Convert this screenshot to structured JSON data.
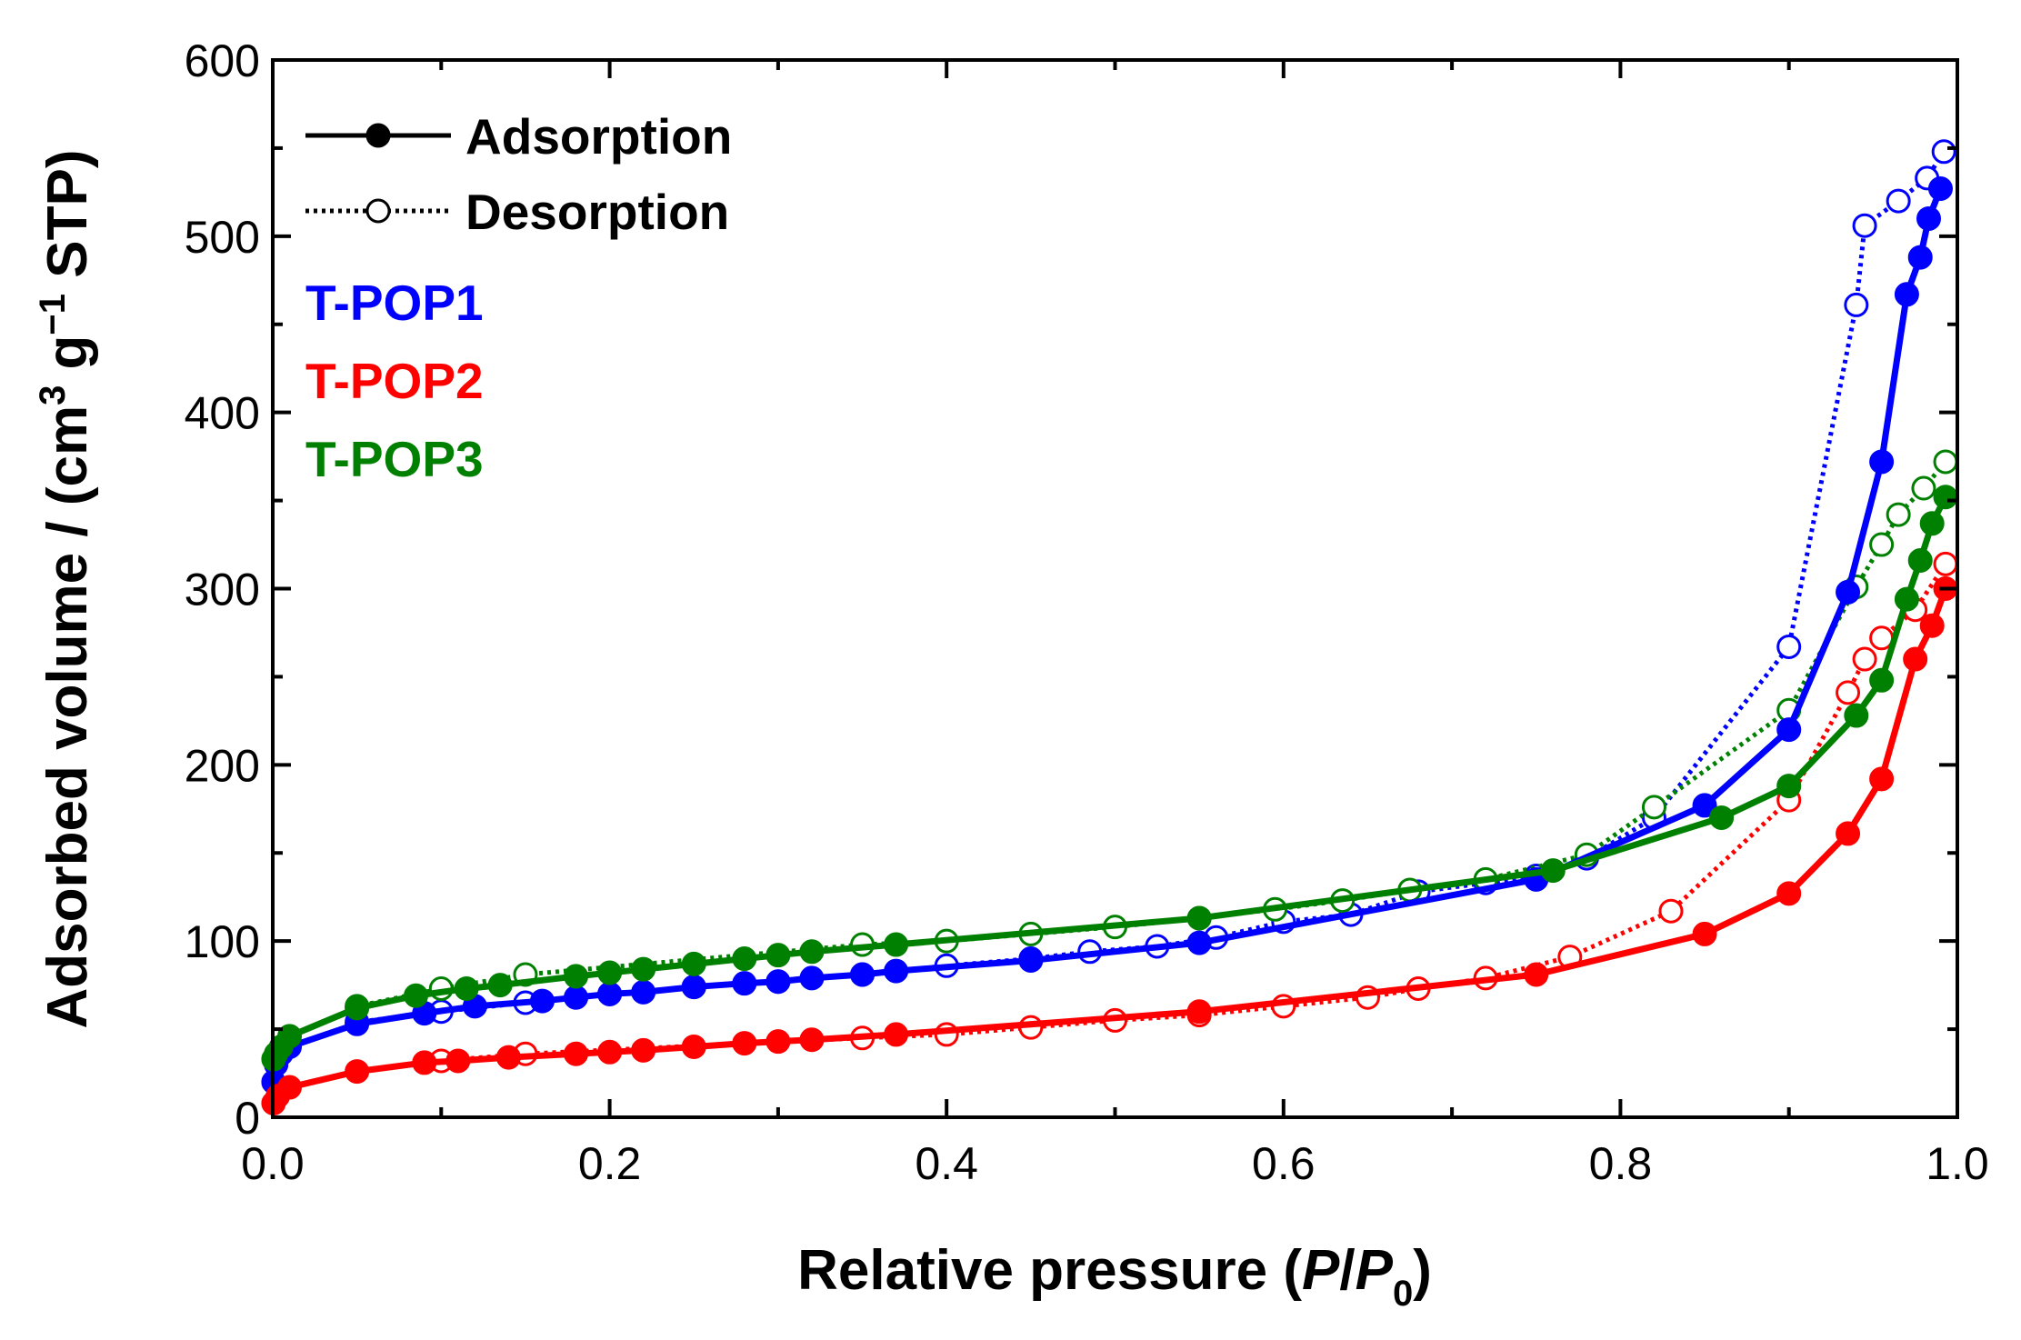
{
  "chart_data": {
    "type": "line",
    "xlim": [
      0.0,
      1.0
    ],
    "ylim": [
      0,
      600
    ],
    "x_ticks": [
      0.0,
      0.2,
      0.4,
      0.6,
      0.8,
      1.0
    ],
    "x_tick_labels": [
      "0.0",
      "0.2",
      "0.4",
      "0.6",
      "0.8",
      "1.0"
    ],
    "y_ticks": [
      0,
      100,
      200,
      300,
      400,
      500,
      600
    ],
    "y_tick_labels": [
      "0",
      "100",
      "200",
      "300",
      "400",
      "500",
      "600"
    ],
    "xlabel": {
      "main": "Relative pressure (",
      "italic_p": "P",
      "slash": "/",
      "italic_p0": "P",
      "sub_zero": "0",
      "close": ")"
    },
    "ylabel": {
      "main": "Adsorbed volume / (cm",
      "sup3": "3",
      "g": " g",
      "supm1": "−1",
      "tail": " STP)"
    },
    "legend": {
      "style_entries": [
        {
          "label": "Adsorption",
          "style": "solid-filled"
        },
        {
          "label": "Desorption",
          "style": "dotted-open"
        }
      ],
      "series_labels": [
        "T-POP1",
        "T-POP2",
        "T-POP3"
      ],
      "placement": "top-left"
    },
    "series": [
      {
        "name": "T-POP1",
        "color": "#0000ff",
        "adsorption": {
          "x": [
            0.0005,
            0.002,
            0.005,
            0.01,
            0.05,
            0.09,
            0.12,
            0.16,
            0.18,
            0.2,
            0.22,
            0.25,
            0.28,
            0.3,
            0.32,
            0.35,
            0.37,
            0.45,
            0.55,
            0.75,
            0.85,
            0.9,
            0.935,
            0.955,
            0.97,
            0.978,
            0.983,
            0.99
          ],
          "y": [
            20,
            30,
            36,
            40,
            53,
            59,
            63,
            66,
            68,
            70,
            71,
            74,
            76,
            77,
            79,
            81,
            83,
            89,
            99,
            135,
            177,
            220,
            298,
            372,
            467,
            488,
            510,
            527
          ]
        },
        "desorption": {
          "x": [
            0.992,
            0.982,
            0.965,
            0.945,
            0.94,
            0.9,
            0.82,
            0.78,
            0.75,
            0.72,
            0.68,
            0.64,
            0.6,
            0.56,
            0.525,
            0.485,
            0.45,
            0.4,
            0.35,
            0.3,
            0.25,
            0.2,
            0.15,
            0.1,
            0.05
          ],
          "y": [
            548,
            533,
            520,
            506,
            461,
            267,
            170,
            147,
            137,
            133,
            128,
            115,
            111,
            102,
            97,
            94,
            90,
            86,
            81,
            77,
            74,
            70,
            65,
            60,
            54
          ]
        }
      },
      {
        "name": "T-POP2",
        "color": "#ff0000",
        "adsorption": {
          "x": [
            0.0005,
            0.003,
            0.01,
            0.05,
            0.09,
            0.11,
            0.14,
            0.18,
            0.2,
            0.22,
            0.25,
            0.28,
            0.3,
            0.32,
            0.37,
            0.55,
            0.75,
            0.85,
            0.9,
            0.935,
            0.955,
            0.975,
            0.985,
            0.993
          ],
          "y": [
            8,
            12,
            17,
            26,
            31,
            32,
            34,
            36,
            37,
            38,
            40,
            42,
            43,
            44,
            47,
            60,
            81,
            104,
            127,
            161,
            192,
            260,
            279,
            300
          ]
        },
        "desorption": {
          "x": [
            0.993,
            0.975,
            0.955,
            0.945,
            0.935,
            0.9,
            0.83,
            0.77,
            0.72,
            0.68,
            0.65,
            0.6,
            0.55,
            0.5,
            0.45,
            0.4,
            0.35,
            0.15,
            0.1
          ],
          "y": [
            314,
            288,
            272,
            260,
            241,
            180,
            117,
            91,
            79,
            73,
            68,
            63,
            58,
            55,
            51,
            47,
            45,
            36,
            32
          ]
        }
      },
      {
        "name": "T-POP3",
        "color": "#008000",
        "adsorption": {
          "x": [
            0.0005,
            0.002,
            0.005,
            0.01,
            0.05,
            0.085,
            0.115,
            0.135,
            0.18,
            0.2,
            0.22,
            0.25,
            0.28,
            0.3,
            0.32,
            0.37,
            0.55,
            0.76,
            0.86,
            0.9,
            0.94,
            0.955,
            0.97,
            0.978,
            0.985,
            0.993
          ],
          "y": [
            33,
            36,
            40,
            46,
            62,
            69,
            73,
            75,
            80,
            82,
            84,
            87,
            90,
            92,
            94,
            98,
            113,
            140,
            170,
            188,
            228,
            248,
            294,
            316,
            337,
            352
          ]
        },
        "desorption": {
          "x": [
            0.993,
            0.98,
            0.965,
            0.955,
            0.94,
            0.9,
            0.82,
            0.78,
            0.72,
            0.675,
            0.635,
            0.595,
            0.55,
            0.5,
            0.45,
            0.4,
            0.35,
            0.15,
            0.1,
            0.05
          ],
          "y": [
            372,
            357,
            342,
            325,
            301,
            231,
            176,
            149,
            135,
            129,
            123,
            118,
            113,
            108,
            104,
            100,
            98,
            81,
            73,
            63
          ]
        }
      }
    ]
  }
}
